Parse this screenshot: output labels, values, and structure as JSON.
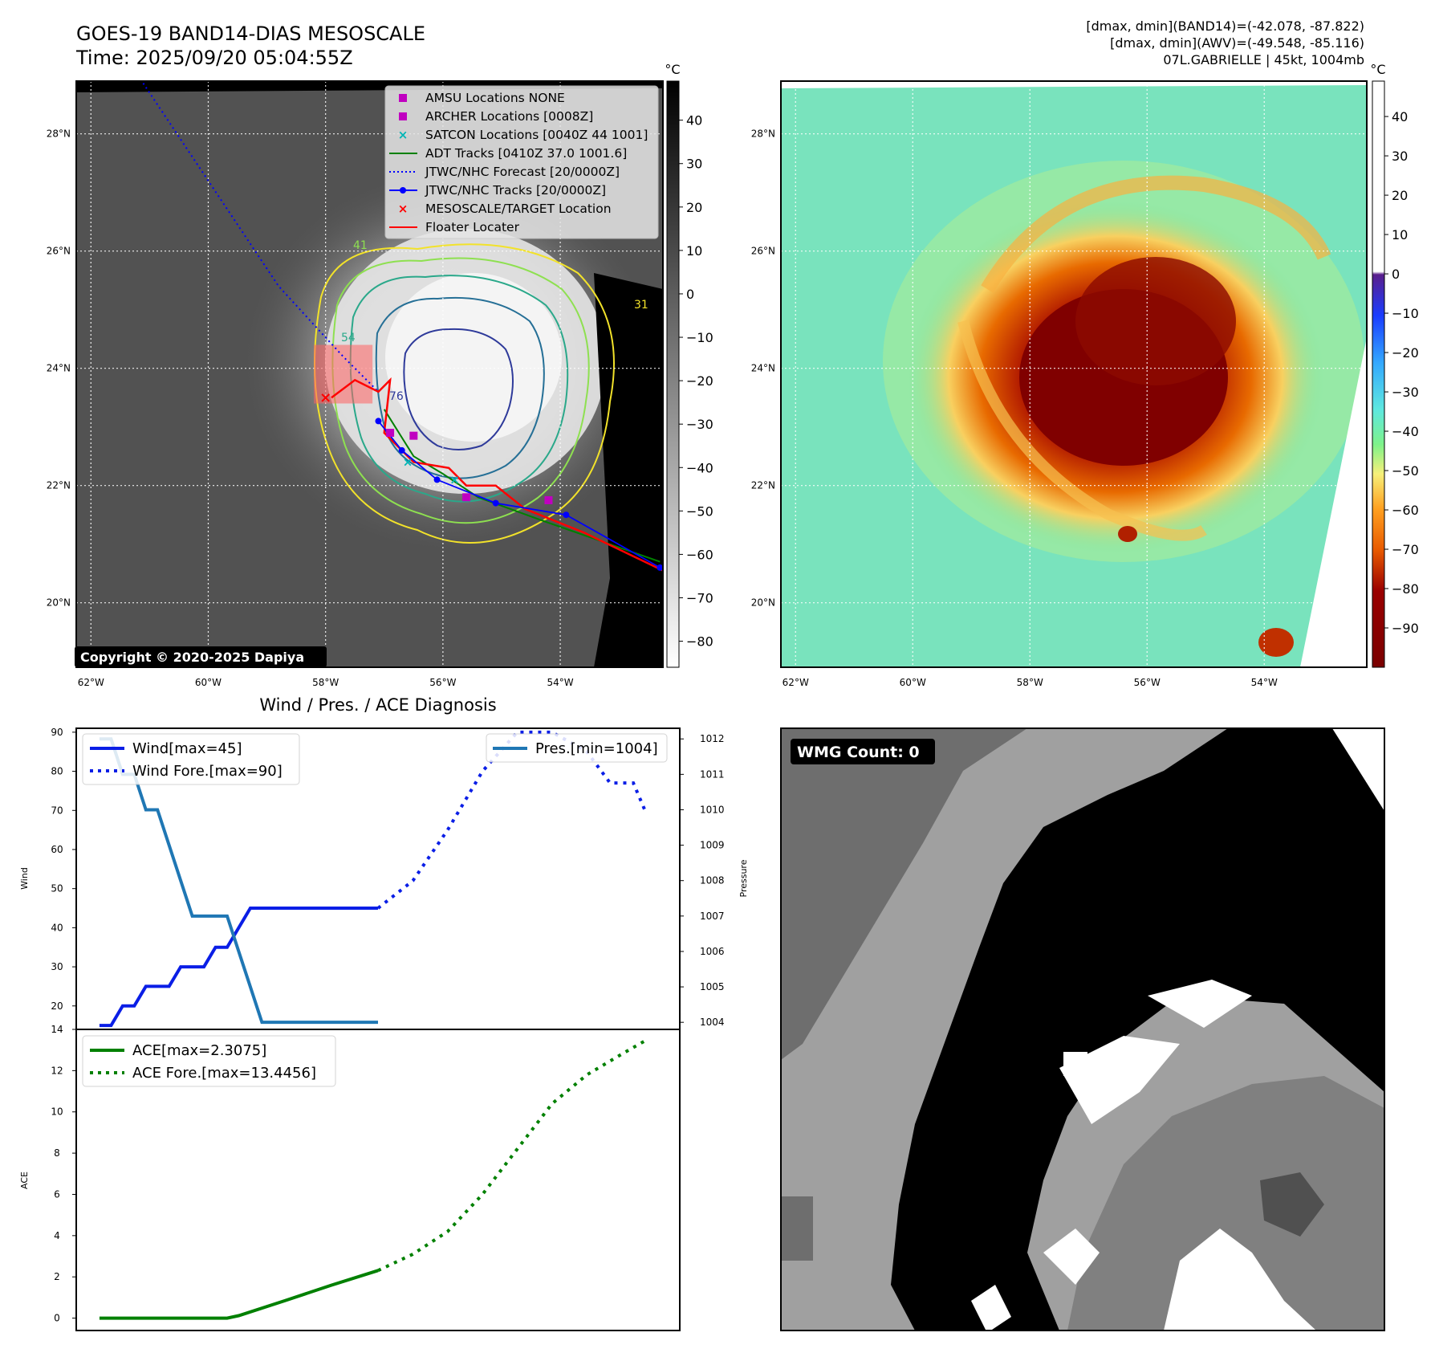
{
  "header": {
    "title": "GOES-19 BAND14-DIAS MESOSCALE",
    "time": "Time: 2025/09/20 05:04:55Z",
    "info": [
      "[dmax, dmin](BAND14)=(-42.078, -87.822)",
      "[dmax, dmin](AWV)=(-49.548, -85.116)",
      "07L.GABRIELLE | 45kt, 1004mb"
    ]
  },
  "maps": {
    "lat_labels": [
      "28°N",
      "26°N",
      "24°N",
      "22°N",
      "20°N"
    ],
    "lat_values": [
      28,
      26,
      24,
      22,
      20
    ],
    "lon_labels": [
      "62°W",
      "60°W",
      "58°W",
      "56°W",
      "54°W"
    ],
    "lon_values": [
      -62,
      -60,
      -58,
      -56,
      -54
    ],
    "extent": {
      "lon": [
        -62.25,
        -52.25
      ],
      "lat": [
        18.9,
        28.9
      ]
    },
    "copyright": "Copyright © 2020-2025 Dapiya",
    "contour_labels": [
      "54",
      "41",
      "76",
      "31"
    ]
  },
  "colorbars": {
    "band14": {
      "unit": "°C",
      "ticks": [
        "40",
        "30",
        "20",
        "10",
        "0",
        "−10",
        "−20",
        "−30",
        "−40",
        "−50",
        "−60",
        "−70",
        "−80"
      ],
      "tick_values": [
        40,
        30,
        20,
        10,
        0,
        -10,
        -20,
        -30,
        -40,
        -50,
        -60,
        -70,
        -80
      ],
      "range": [
        -86,
        49
      ]
    },
    "awv": {
      "unit": "°C",
      "ticks": [
        "40",
        "30",
        "20",
        "10",
        "0",
        "−10",
        "−20",
        "−30",
        "−40",
        "−50",
        "−60",
        "−70",
        "−80",
        "−90"
      ],
      "tick_values": [
        40,
        30,
        20,
        10,
        0,
        -10,
        -20,
        -30,
        -40,
        -50,
        -60,
        -70,
        -80,
        -90
      ],
      "range": [
        -100,
        49
      ]
    }
  },
  "legend": [
    {
      "label": "AMSU Locations NONE",
      "kind": "square",
      "color": "#c000c0"
    },
    {
      "label": "ARCHER Locations [0008Z]",
      "kind": "square",
      "color": "#c000c0"
    },
    {
      "label": "SATCON Locations [0040Z 44 1001]",
      "kind": "x",
      "color": "#00b5b5"
    },
    {
      "label": "ADT Tracks [0410Z 37.0 1001.6]",
      "kind": "line",
      "color": "#008000"
    },
    {
      "label": "JTWC/NHC Forecast [20/0000Z]",
      "kind": "dotted",
      "color": "#0000ff"
    },
    {
      "label": "JTWC/NHC Tracks [20/0000Z]",
      "kind": "line-dot",
      "color": "#0000ff"
    },
    {
      "label": "MESOSCALE/TARGET Location",
      "kind": "x",
      "color": "#ff0000"
    },
    {
      "label": "Floater Locater",
      "kind": "line",
      "color": "#ff0000"
    }
  ],
  "tracks": {
    "jtwc_forecast": [
      [
        -61.2,
        29.0
      ],
      [
        -60.0,
        27.2
      ],
      [
        -58.8,
        25.4
      ],
      [
        -57.7,
        24.2
      ],
      [
        -57.1,
        23.6
      ]
    ],
    "jtwc_track": [
      [
        -57.1,
        23.1
      ],
      [
        -56.7,
        22.6
      ],
      [
        -56.1,
        22.1
      ],
      [
        -55.1,
        21.7
      ],
      [
        -53.9,
        21.5
      ],
      [
        -52.3,
        20.6
      ]
    ],
    "adt": [
      [
        -57.0,
        23.3
      ],
      [
        -56.5,
        22.5
      ],
      [
        -56.0,
        22.2
      ],
      [
        -55.4,
        21.8
      ],
      [
        -54.3,
        21.4
      ],
      [
        -52.3,
        20.7
      ]
    ],
    "floater": [
      [
        -57.9,
        23.5
      ],
      [
        -57.5,
        23.8
      ],
      [
        -57.1,
        23.6
      ],
      [
        -56.9,
        23.8
      ],
      [
        -57.0,
        22.9
      ],
      [
        -56.5,
        22.4
      ],
      [
        -55.9,
        22.3
      ],
      [
        -55.6,
        22.0
      ],
      [
        -55.1,
        22.0
      ],
      [
        -54.6,
        21.6
      ],
      [
        -53.6,
        21.2
      ],
      [
        -52.25,
        20.55
      ]
    ],
    "target": [
      -58.0,
      23.5
    ],
    "archer": [
      [
        -56.9,
        22.9
      ],
      [
        -56.5,
        22.85
      ],
      [
        -55.6,
        21.8
      ],
      [
        -54.2,
        21.75
      ]
    ],
    "satcon": [
      [
        -56.6,
        22.4
      ],
      [
        -55.8,
        22.1
      ]
    ],
    "floater_box": {
      "lon": [
        -58.2,
        -57.2
      ],
      "lat": [
        23.4,
        24.4
      ]
    }
  },
  "chart_data": [
    {
      "type": "line",
      "title": "Wind / Pres. / ACE Diagnosis",
      "ylabel": "Wind",
      "y2label": "Pressure",
      "xlim": [
        -2,
        50
      ],
      "ylim": [
        14,
        91
      ],
      "y2lim": [
        1003.8,
        1012.3
      ],
      "yticks": [
        20,
        30,
        40,
        50,
        60,
        70,
        80,
        90
      ],
      "y2ticks": [
        1004,
        1005,
        1006,
        1007,
        1008,
        1009,
        1010,
        1011,
        1012
      ],
      "series": [
        {
          "name": "Wind[max=45]",
          "axis": "left",
          "style": "solid",
          "color": "#0a1ee6",
          "x": [
            0,
            1,
            2,
            3,
            4,
            5,
            6,
            7,
            8,
            9,
            10,
            11,
            12,
            13,
            14,
            15,
            16,
            17,
            18,
            19,
            20,
            21,
            22,
            23,
            24
          ],
          "values": [
            15,
            15,
            20,
            20,
            25,
            25,
            25,
            30,
            30,
            30,
            35,
            35,
            40,
            45,
            45,
            45,
            45,
            45,
            45,
            45,
            45,
            45,
            45,
            45,
            45
          ]
        },
        {
          "name": "Wind Fore.[max=90]",
          "axis": "left",
          "style": "dotted",
          "color": "#0a1ee6",
          "x": [
            24,
            27,
            30,
            33,
            36,
            39,
            42,
            44,
            45,
            46,
            47
          ],
          "values": [
            45,
            52,
            65,
            80,
            90,
            90,
            85,
            77,
            77,
            77,
            70
          ]
        },
        {
          "name": "Pres.[min=1004]",
          "axis": "right",
          "style": "solid",
          "color": "#1f77b4",
          "x": [
            0,
            1,
            2,
            3,
            4,
            5,
            6,
            7,
            8,
            9,
            10,
            11,
            12,
            13,
            14,
            15,
            16,
            17,
            18,
            19,
            20,
            21,
            22,
            23,
            24
          ],
          "values": [
            1012,
            1012,
            1011,
            1011,
            1010,
            1010,
            1009,
            1008,
            1007,
            1007,
            1007,
            1007,
            1006,
            1005,
            1004,
            1004,
            1004,
            1004,
            1004,
            1004,
            1004,
            1004,
            1004,
            1004,
            1004
          ]
        }
      ]
    },
    {
      "type": "line",
      "ylabel": "ACE",
      "xlim": [
        -2,
        50
      ],
      "ylim": [
        -0.6,
        14
      ],
      "yticks": [
        0,
        2,
        4,
        6,
        8,
        10,
        12,
        14
      ],
      "series": [
        {
          "name": "ACE[max=2.3075]",
          "style": "solid",
          "color": "#008000",
          "x": [
            0,
            4,
            8,
            11,
            12,
            16,
            20,
            24
          ],
          "values": [
            0,
            0,
            0,
            0,
            0.12,
            0.85,
            1.6,
            2.3075
          ]
        },
        {
          "name": "ACE Fore.[max=13.4456]",
          "style": "dotted",
          "color": "#008000",
          "x": [
            24,
            27,
            30,
            33,
            36,
            39,
            42,
            45,
            47
          ],
          "values": [
            2.3075,
            3.1,
            4.2,
            6.0,
            8.2,
            10.4,
            11.8,
            12.8,
            13.4456
          ]
        }
      ]
    }
  ],
  "wmg": {
    "label": "WMG Count: 0"
  }
}
